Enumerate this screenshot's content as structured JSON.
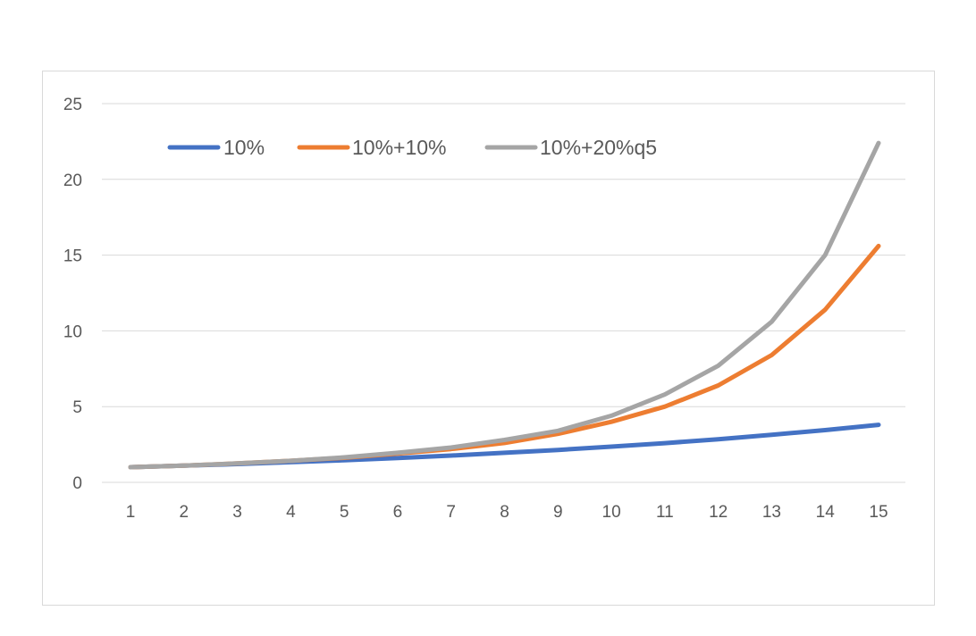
{
  "chart_data": {
    "type": "line",
    "title": "",
    "xlabel": "",
    "ylabel": "",
    "categories": [
      "1",
      "2",
      "3",
      "4",
      "5",
      "6",
      "7",
      "8",
      "9",
      "10",
      "11",
      "12",
      "13",
      "14",
      "15"
    ],
    "x_tick_labels": [
      "1",
      "2",
      "3",
      "4",
      "5",
      "6",
      "7",
      "8",
      "9",
      "10",
      "11",
      "12",
      "13",
      "14",
      "15"
    ],
    "y_tick_labels": [
      "0",
      "5",
      "10",
      "15",
      "20",
      "25"
    ],
    "y_ticks": [
      0,
      5,
      10,
      15,
      20,
      25
    ],
    "ylim": [
      0,
      25
    ],
    "grid": "horizontal",
    "legend_position": "top-left",
    "series": [
      {
        "name": "10%",
        "color": "#4472c4",
        "values": [
          1.0,
          1.1,
          1.21,
          1.33,
          1.46,
          1.61,
          1.77,
          1.95,
          2.14,
          2.36,
          2.59,
          2.85,
          3.14,
          3.45,
          3.8
        ]
      },
      {
        "name": "10%+10%",
        "color": "#ed7d31",
        "values": [
          1.0,
          1.1,
          1.25,
          1.42,
          1.62,
          1.9,
          2.2,
          2.6,
          3.2,
          4.0,
          5.0,
          6.4,
          8.4,
          11.4,
          15.6
        ]
      },
      {
        "name": "10%+20%q5",
        "color": "#a5a5a5",
        "values": [
          1.0,
          1.1,
          1.25,
          1.42,
          1.65,
          1.95,
          2.3,
          2.8,
          3.4,
          4.4,
          5.8,
          7.7,
          10.6,
          15.0,
          22.4
        ]
      }
    ]
  }
}
